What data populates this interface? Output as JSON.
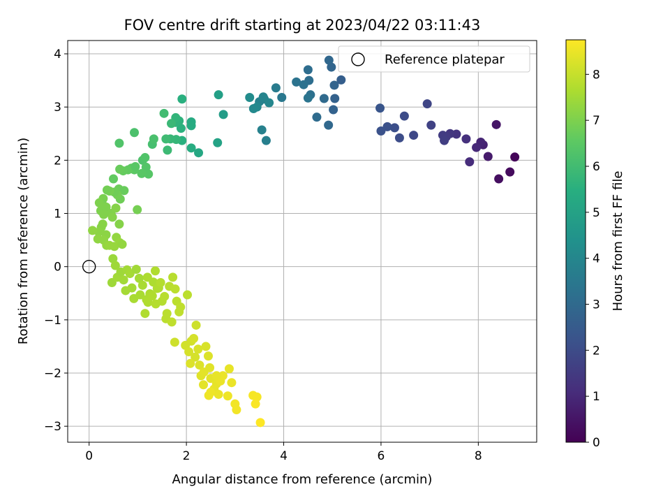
{
  "chart_data": {
    "type": "scatter",
    "title": "FOV centre drift starting at 2023/04/22 03:11:43",
    "xlabel": "Angular distance from reference (arcmin)",
    "ylabel": "Rotation from reference (arcmin)",
    "xlim": [
      -0.44,
      9.2
    ],
    "ylim": [
      -3.3,
      4.25
    ],
    "xticks": [
      0,
      2,
      4,
      6,
      8
    ],
    "yticks": [
      -3,
      -2,
      -1,
      0,
      1,
      2,
      3,
      4
    ],
    "grid": true,
    "legend": {
      "position": "top-right",
      "entries": [
        "Reference platepar"
      ]
    },
    "reference_point": {
      "x": 0,
      "y": 0
    },
    "colorbar": {
      "label": "Hours from first FF file",
      "min": 0,
      "max": 8.75,
      "ticks": [
        0,
        1,
        2,
        3,
        4,
        5,
        6,
        7,
        8
      ],
      "colormap": "viridis"
    },
    "points": [
      [
        8.75,
        2.06,
        0.1
      ],
      [
        8.65,
        1.78,
        0.25
      ],
      [
        8.42,
        1.65,
        0.35
      ],
      [
        8.37,
        2.67,
        0.5
      ],
      [
        8.2,
        2.07,
        0.65
      ],
      [
        8.1,
        2.29,
        0.8
      ],
      [
        8.05,
        2.34,
        0.9
      ],
      [
        7.96,
        2.24,
        1.0
      ],
      [
        7.82,
        1.97,
        1.1
      ],
      [
        7.75,
        2.4,
        1.2
      ],
      [
        7.55,
        2.49,
        1.3
      ],
      [
        7.42,
        2.5,
        1.4
      ],
      [
        7.34,
        2.44,
        1.5
      ],
      [
        7.27,
        2.47,
        1.55
      ],
      [
        7.3,
        2.37,
        1.6
      ],
      [
        7.03,
        2.66,
        1.7
      ],
      [
        6.95,
        3.06,
        1.8
      ],
      [
        6.67,
        2.47,
        1.9
      ],
      [
        6.48,
        2.83,
        2.0
      ],
      [
        6.38,
        2.42,
        2.05
      ],
      [
        6.28,
        2.61,
        2.1
      ],
      [
        6.13,
        2.63,
        2.15
      ],
      [
        6.0,
        2.55,
        2.2
      ],
      [
        5.98,
        2.98,
        2.3
      ],
      [
        5.18,
        3.51,
        2.6
      ],
      [
        5.05,
        3.16,
        2.7
      ],
      [
        5.02,
        2.95,
        2.75
      ],
      [
        5.04,
        3.41,
        2.8
      ],
      [
        4.98,
        3.75,
        2.85
      ],
      [
        4.93,
        3.88,
        2.9
      ],
      [
        4.92,
        2.66,
        2.95
      ],
      [
        4.83,
        3.16,
        3.0
      ],
      [
        4.68,
        2.81,
        3.05
      ],
      [
        4.5,
        3.7,
        3.1
      ],
      [
        4.52,
        3.5,
        3.15
      ],
      [
        4.55,
        3.23,
        3.2
      ],
      [
        4.41,
        3.42,
        3.25
      ],
      [
        4.26,
        3.47,
        3.3
      ],
      [
        4.5,
        3.17,
        3.35
      ],
      [
        3.96,
        3.18,
        3.5
      ],
      [
        3.84,
        3.36,
        3.6
      ],
      [
        3.6,
        3.15,
        3.7
      ],
      [
        3.64,
        2.37,
        3.75
      ],
      [
        3.55,
        2.57,
        3.8
      ],
      [
        3.5,
        3.1,
        3.85
      ],
      [
        3.58,
        3.19,
        3.9
      ],
      [
        3.7,
        3.08,
        4.0
      ],
      [
        3.45,
        3.0,
        4.05
      ],
      [
        3.38,
        2.97,
        4.1
      ],
      [
        3.3,
        3.18,
        4.2
      ],
      [
        2.76,
        2.86,
        4.8
      ],
      [
        2.66,
        3.23,
        4.9
      ],
      [
        2.64,
        2.33,
        5.0
      ],
      [
        2.25,
        2.14,
        5.2
      ],
      [
        2.1,
        2.72,
        5.3
      ],
      [
        2.1,
        2.65,
        5.35
      ],
      [
        2.1,
        2.23,
        5.4
      ],
      [
        1.91,
        2.37,
        5.5
      ],
      [
        1.89,
        2.6,
        5.55
      ],
      [
        1.85,
        2.74,
        5.6
      ],
      [
        1.78,
        2.71,
        5.65
      ],
      [
        1.78,
        2.8,
        5.7
      ],
      [
        1.79,
        2.39,
        5.75
      ],
      [
        1.67,
        2.4,
        5.8
      ],
      [
        1.69,
        2.69,
        5.85
      ],
      [
        1.61,
        2.19,
        5.9
      ],
      [
        1.58,
        2.4,
        5.95
      ],
      [
        1.54,
        2.88,
        6.0
      ],
      [
        1.91,
        3.15,
        5.5
      ],
      [
        0.93,
        2.52,
        6.2
      ],
      [
        0.62,
        2.32,
        6.3
      ],
      [
        1.3,
        2.3,
        6.1
      ],
      [
        1.33,
        2.4,
        6.15
      ],
      [
        1.1,
        2.0,
        6.25
      ],
      [
        1.15,
        2.05,
        6.3
      ],
      [
        1.17,
        1.87,
        6.35
      ],
      [
        1.22,
        1.74,
        6.4
      ],
      [
        1.08,
        1.75,
        6.45
      ],
      [
        0.93,
        1.82,
        6.5
      ],
      [
        0.87,
        1.85,
        6.55
      ],
      [
        0.8,
        1.82,
        6.6
      ],
      [
        0.7,
        1.8,
        6.65
      ],
      [
        0.63,
        1.83,
        6.7
      ],
      [
        0.95,
        1.88,
        6.45
      ],
      [
        0.5,
        1.65,
        6.6
      ],
      [
        0.61,
        1.46,
        6.75
      ],
      [
        0.72,
        1.43,
        6.7
      ],
      [
        0.64,
        1.27,
        6.8
      ],
      [
        0.58,
        1.35,
        6.85
      ],
      [
        0.52,
        1.4,
        6.8
      ],
      [
        0.42,
        1.42,
        6.9
      ],
      [
        0.37,
        1.44,
        6.85
      ],
      [
        0.29,
        1.28,
        6.95
      ],
      [
        0.27,
        1.18,
        6.9
      ],
      [
        0.24,
        1.05,
        7.0
      ],
      [
        0.21,
        1.2,
        7.0
      ],
      [
        0.35,
        1.12,
        7.0
      ],
      [
        0.3,
        0.98,
        7.05
      ],
      [
        0.45,
        1.0,
        7.05
      ],
      [
        0.48,
        0.93,
        7.1
      ],
      [
        0.55,
        1.1,
        7.1
      ],
      [
        0.62,
        0.8,
        7.1
      ],
      [
        0.28,
        0.8,
        7.15
      ],
      [
        0.25,
        0.74,
        7.15
      ],
      [
        0.35,
        0.6,
        7.2
      ],
      [
        0.2,
        0.65,
        7.2
      ],
      [
        0.07,
        0.68,
        7.25
      ],
      [
        0.18,
        0.52,
        7.25
      ],
      [
        0.3,
        0.5,
        7.25
      ],
      [
        0.36,
        0.4,
        7.3
      ],
      [
        0.56,
        0.55,
        7.3
      ],
      [
        0.63,
        0.45,
        7.35
      ],
      [
        0.52,
        0.38,
        7.35
      ],
      [
        0.68,
        0.42,
        7.3
      ],
      [
        0.99,
        1.07,
        6.9
      ],
      [
        0.42,
        0.4,
        7.35
      ],
      [
        0.49,
        0.15,
        7.4
      ],
      [
        0.54,
        0.02,
        7.45
      ],
      [
        0.47,
        -0.3,
        7.45
      ],
      [
        0.58,
        -0.2,
        7.5
      ],
      [
        0.65,
        -0.1,
        7.45
      ],
      [
        0.71,
        -0.25,
        7.5
      ],
      [
        0.75,
        -0.45,
        7.55
      ],
      [
        0.78,
        -0.06,
        7.5
      ],
      [
        0.84,
        -0.13,
        7.55
      ],
      [
        0.88,
        -0.4,
        7.55
      ],
      [
        0.92,
        -0.6,
        7.6
      ],
      [
        0.97,
        -0.05,
        7.5
      ],
      [
        1.03,
        -0.22,
        7.55
      ],
      [
        1.05,
        -0.53,
        7.6
      ],
      [
        1.1,
        -0.35,
        7.6
      ],
      [
        1.15,
        -0.88,
        7.7
      ],
      [
        1.18,
        -0.62,
        7.65
      ],
      [
        1.21,
        -0.67,
        7.7
      ],
      [
        1.25,
        -0.51,
        7.65
      ],
      [
        1.3,
        -0.55,
        7.7
      ],
      [
        1.32,
        -0.29,
        7.65
      ],
      [
        1.37,
        -0.7,
        7.75
      ],
      [
        1.4,
        -0.41,
        7.7
      ],
      [
        1.43,
        -0.4,
        7.7
      ],
      [
        1.47,
        -0.3,
        7.75
      ],
      [
        1.5,
        -0.65,
        7.75
      ],
      [
        1.55,
        -0.56,
        7.8
      ],
      [
        1.58,
        -0.98,
        7.85
      ],
      [
        1.6,
        -0.88,
        7.85
      ],
      [
        1.65,
        -0.37,
        7.8
      ],
      [
        1.7,
        -1.04,
        7.9
      ],
      [
        1.72,
        -0.2,
        7.8
      ],
      [
        1.77,
        -0.42,
        7.85
      ],
      [
        1.8,
        -0.65,
        7.85
      ],
      [
        1.85,
        -0.85,
        7.9
      ],
      [
        1.88,
        -0.76,
        7.9
      ],
      [
        2.02,
        -0.53,
        7.85
      ],
      [
        1.36,
        -0.08,
        7.7
      ],
      [
        1.2,
        -0.2,
        7.65
      ],
      [
        1.76,
        -1.42,
        8.1
      ],
      [
        2.2,
        -1.1,
        8.1
      ],
      [
        1.98,
        -1.48,
        8.15
      ],
      [
        2.05,
        -1.6,
        8.2
      ],
      [
        2.1,
        -1.4,
        8.15
      ],
      [
        2.15,
        -1.35,
        8.2
      ],
      [
        2.18,
        -1.7,
        8.2
      ],
      [
        2.08,
        -1.82,
        8.3
      ],
      [
        2.24,
        -1.55,
        8.25
      ],
      [
        2.27,
        -1.85,
        8.3
      ],
      [
        2.3,
        -2.05,
        8.35
      ],
      [
        2.36,
        -1.98,
        8.4
      ],
      [
        2.4,
        -1.5,
        8.25
      ],
      [
        2.45,
        -1.68,
        8.3
      ],
      [
        2.48,
        -1.9,
        8.35
      ],
      [
        2.5,
        -2.1,
        8.4
      ],
      [
        2.57,
        -2.3,
        8.45
      ],
      [
        2.62,
        -2.2,
        8.45
      ],
      [
        2.7,
        -2.15,
        8.5
      ],
      [
        2.75,
        -2.05,
        8.5
      ],
      [
        2.66,
        -2.4,
        8.5
      ],
      [
        2.5,
        -2.36,
        8.55
      ],
      [
        2.46,
        -2.42,
        8.55
      ],
      [
        2.88,
        -1.92,
        8.45
      ],
      [
        2.93,
        -2.18,
        8.5
      ],
      [
        2.85,
        -2.43,
        8.55
      ],
      [
        3.0,
        -2.58,
        8.6
      ],
      [
        3.03,
        -2.69,
        8.6
      ],
      [
        3.37,
        -2.42,
        8.65
      ],
      [
        3.45,
        -2.45,
        8.65
      ],
      [
        3.42,
        -2.58,
        8.7
      ],
      [
        3.52,
        -2.93,
        8.75
      ],
      [
        2.35,
        -2.22,
        8.4
      ],
      [
        2.62,
        -2.05,
        8.45
      ]
    ]
  }
}
